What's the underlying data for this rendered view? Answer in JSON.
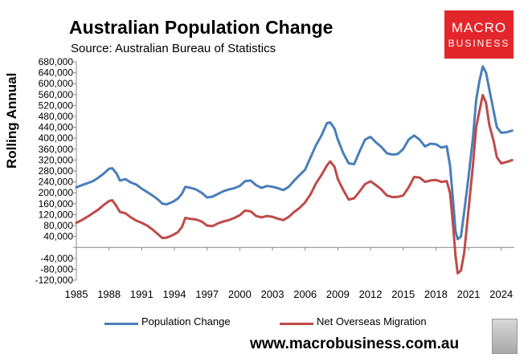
{
  "header": {
    "title": "Australian Population Change",
    "subtitle": "Source: Australian Bureau of Statistics"
  },
  "logo": {
    "line1": "MACRO",
    "line2": "BUSINESS"
  },
  "footer": {
    "url": "www.macrobusiness.com.au"
  },
  "colors": {
    "population": "#4a7ebb",
    "migration": "#be4b48",
    "logo_bg": "#e3262b"
  },
  "chart_data": {
    "type": "line",
    "title": "Australian Population Change",
    "subtitle": "Source: Australian Bureau of Statistics",
    "ylabel": "Rolling Annual",
    "xlabel": "",
    "xlim": [
      1985,
      2025.2
    ],
    "ylim": [
      -120000,
      680000
    ],
    "y_ticks": [
      {
        "v": 680000,
        "label": "680,000"
      },
      {
        "v": 640000,
        "label": "640,000"
      },
      {
        "v": 600000,
        "label": "600,000"
      },
      {
        "v": 560000,
        "label": "560,000"
      },
      {
        "v": 520000,
        "label": "520,000"
      },
      {
        "v": 480000,
        "label": "480,000"
      },
      {
        "v": 440000,
        "label": "440,000"
      },
      {
        "v": 400000,
        "label": "400,000"
      },
      {
        "v": 360000,
        "label": "360,000"
      },
      {
        "v": 320000,
        "label": "320,000"
      },
      {
        "v": 280000,
        "label": "280,000"
      },
      {
        "v": 240000,
        "label": "240,000"
      },
      {
        "v": 200000,
        "label": "200,000"
      },
      {
        "v": 160000,
        "label": "160,000"
      },
      {
        "v": 120000,
        "label": "120,000"
      },
      {
        "v": 80000,
        "label": "80,000"
      },
      {
        "v": 40000,
        "label": "40,000"
      },
      {
        "v": 0,
        "label": ""
      },
      {
        "v": -40000,
        "label": "-40,000"
      },
      {
        "v": -80000,
        "label": "-80,000"
      },
      {
        "v": -120000,
        "label": "-120,000"
      }
    ],
    "x_ticks": [
      {
        "v": 1985,
        "label": "1985"
      },
      {
        "v": 1988,
        "label": "1988"
      },
      {
        "v": 1991,
        "label": "1991"
      },
      {
        "v": 1994,
        "label": "1994"
      },
      {
        "v": 1997,
        "label": "1997"
      },
      {
        "v": 2000,
        "label": "2000"
      },
      {
        "v": 2003,
        "label": "2003"
      },
      {
        "v": 2006,
        "label": "2006"
      },
      {
        "v": 2009,
        "label": "2009"
      },
      {
        "v": 2012,
        "label": "2012"
      },
      {
        "v": 2015,
        "label": "2015"
      },
      {
        "v": 2018,
        "label": "2018"
      },
      {
        "v": 2021,
        "label": "2021"
      },
      {
        "v": 2024,
        "label": "2024"
      }
    ],
    "grid": false,
    "legend_position": "bottom",
    "series": [
      {
        "name": "Population Change",
        "color": "#4a7ebb",
        "points": [
          [
            1985,
            220000
          ],
          [
            1985.5,
            228000
          ],
          [
            1986,
            235000
          ],
          [
            1986.5,
            242000
          ],
          [
            1987,
            255000
          ],
          [
            1987.5,
            270000
          ],
          [
            1988,
            288000
          ],
          [
            1988.3,
            290000
          ],
          [
            1988.7,
            270000
          ],
          [
            1989,
            245000
          ],
          [
            1989.5,
            250000
          ],
          [
            1990,
            238000
          ],
          [
            1990.5,
            230000
          ],
          [
            1991,
            215000
          ],
          [
            1991.5,
            203000
          ],
          [
            1992,
            190000
          ],
          [
            1992.5,
            175000
          ],
          [
            1992.9,
            160000
          ],
          [
            1993.3,
            158000
          ],
          [
            1993.8,
            166000
          ],
          [
            1994.3,
            178000
          ],
          [
            1994.7,
            197000
          ],
          [
            1995,
            222000
          ],
          [
            1995.5,
            218000
          ],
          [
            1996,
            212000
          ],
          [
            1996.5,
            200000
          ],
          [
            1997,
            183000
          ],
          [
            1997.5,
            186000
          ],
          [
            1998,
            196000
          ],
          [
            1998.5,
            206000
          ],
          [
            1999,
            212000
          ],
          [
            1999.5,
            217000
          ],
          [
            2000,
            225000
          ],
          [
            2000.5,
            243000
          ],
          [
            2001,
            245000
          ],
          [
            2001.5,
            228000
          ],
          [
            2002,
            218000
          ],
          [
            2002.5,
            225000
          ],
          [
            2003,
            222000
          ],
          [
            2003.5,
            217000
          ],
          [
            2004,
            210000
          ],
          [
            2004.5,
            222000
          ],
          [
            2005,
            245000
          ],
          [
            2005.5,
            265000
          ],
          [
            2006,
            285000
          ],
          [
            2006.5,
            330000
          ],
          [
            2007,
            375000
          ],
          [
            2007.5,
            410000
          ],
          [
            2008,
            455000
          ],
          [
            2008.3,
            458000
          ],
          [
            2008.7,
            435000
          ],
          [
            2009,
            395000
          ],
          [
            2009.5,
            345000
          ],
          [
            2010,
            308000
          ],
          [
            2010.5,
            305000
          ],
          [
            2011,
            352000
          ],
          [
            2011.5,
            395000
          ],
          [
            2012,
            405000
          ],
          [
            2012.5,
            385000
          ],
          [
            2013,
            368000
          ],
          [
            2013.5,
            345000
          ],
          [
            2014,
            340000
          ],
          [
            2014.5,
            342000
          ],
          [
            2015,
            360000
          ],
          [
            2015.5,
            395000
          ],
          [
            2016,
            410000
          ],
          [
            2016.5,
            395000
          ],
          [
            2017,
            370000
          ],
          [
            2017.5,
            380000
          ],
          [
            2018,
            378000
          ],
          [
            2018.5,
            366000
          ],
          [
            2019,
            370000
          ],
          [
            2019.3,
            300000
          ],
          [
            2019.6,
            160000
          ],
          [
            2019.8,
            60000
          ],
          [
            2020,
            30000
          ],
          [
            2020.3,
            40000
          ],
          [
            2020.6,
            130000
          ],
          [
            2021,
            260000
          ],
          [
            2021.4,
            400000
          ],
          [
            2021.7,
            540000
          ],
          [
            2022,
            610000
          ],
          [
            2022.3,
            663000
          ],
          [
            2022.6,
            640000
          ],
          [
            2022.9,
            580000
          ],
          [
            2023.3,
            500000
          ],
          [
            2023.6,
            440000
          ],
          [
            2024,
            420000
          ],
          [
            2024.5,
            422000
          ],
          [
            2025,
            428000
          ]
        ]
      },
      {
        "name": "Net Overseas Migration",
        "color": "#be4b48",
        "points": [
          [
            1985,
            90000
          ],
          [
            1985.5,
            100000
          ],
          [
            1986,
            112000
          ],
          [
            1986.5,
            125000
          ],
          [
            1987,
            138000
          ],
          [
            1987.5,
            155000
          ],
          [
            1988,
            170000
          ],
          [
            1988.3,
            173000
          ],
          [
            1988.7,
            150000
          ],
          [
            1989,
            130000
          ],
          [
            1989.5,
            125000
          ],
          [
            1990,
            110000
          ],
          [
            1990.5,
            98000
          ],
          [
            1991,
            90000
          ],
          [
            1991.5,
            80000
          ],
          [
            1992,
            65000
          ],
          [
            1992.5,
            48000
          ],
          [
            1992.9,
            34000
          ],
          [
            1993.3,
            36000
          ],
          [
            1993.8,
            44000
          ],
          [
            1994.3,
            55000
          ],
          [
            1994.7,
            75000
          ],
          [
            1995,
            108000
          ],
          [
            1995.5,
            104000
          ],
          [
            1996,
            102000
          ],
          [
            1996.5,
            95000
          ],
          [
            1997,
            80000
          ],
          [
            1997.5,
            78000
          ],
          [
            1998,
            88000
          ],
          [
            1998.5,
            95000
          ],
          [
            1999,
            100000
          ],
          [
            1999.5,
            108000
          ],
          [
            2000,
            118000
          ],
          [
            2000.5,
            135000
          ],
          [
            2001,
            132000
          ],
          [
            2001.5,
            115000
          ],
          [
            2002,
            110000
          ],
          [
            2002.5,
            115000
          ],
          [
            2003,
            112000
          ],
          [
            2003.5,
            105000
          ],
          [
            2004,
            100000
          ],
          [
            2004.5,
            112000
          ],
          [
            2005,
            130000
          ],
          [
            2005.5,
            145000
          ],
          [
            2006,
            165000
          ],
          [
            2006.5,
            195000
          ],
          [
            2007,
            235000
          ],
          [
            2007.5,
            265000
          ],
          [
            2008,
            300000
          ],
          [
            2008.3,
            315000
          ],
          [
            2008.7,
            295000
          ],
          [
            2009,
            250000
          ],
          [
            2009.5,
            210000
          ],
          [
            2010,
            175000
          ],
          [
            2010.5,
            180000
          ],
          [
            2011,
            205000
          ],
          [
            2011.5,
            232000
          ],
          [
            2012,
            242000
          ],
          [
            2012.5,
            228000
          ],
          [
            2013,
            212000
          ],
          [
            2013.5,
            190000
          ],
          [
            2014,
            184000
          ],
          [
            2014.5,
            185000
          ],
          [
            2015,
            190000
          ],
          [
            2015.5,
            220000
          ],
          [
            2016,
            258000
          ],
          [
            2016.5,
            256000
          ],
          [
            2017,
            240000
          ],
          [
            2017.5,
            245000
          ],
          [
            2018,
            247000
          ],
          [
            2018.5,
            240000
          ],
          [
            2019,
            243000
          ],
          [
            2019.3,
            200000
          ],
          [
            2019.6,
            70000
          ],
          [
            2019.8,
            -30000
          ],
          [
            2020,
            -95000
          ],
          [
            2020.3,
            -85000
          ],
          [
            2020.6,
            -20000
          ],
          [
            2021,
            140000
          ],
          [
            2021.4,
            300000
          ],
          [
            2021.7,
            440000
          ],
          [
            2022,
            500000
          ],
          [
            2022.3,
            558000
          ],
          [
            2022.6,
            530000
          ],
          [
            2022.9,
            450000
          ],
          [
            2023.3,
            390000
          ],
          [
            2023.6,
            330000
          ],
          [
            2024,
            308000
          ],
          [
            2024.5,
            313000
          ],
          [
            2025,
            320000
          ]
        ]
      }
    ]
  }
}
